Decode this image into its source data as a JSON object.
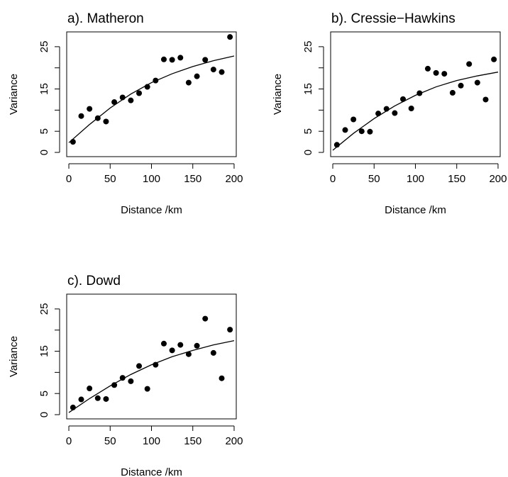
{
  "chart_data": [
    {
      "type": "scatter",
      "title": "a). Matheron",
      "xlabel": "Distance /km",
      "ylabel": "Variance",
      "x": [
        5,
        15,
        25,
        35,
        45,
        55,
        65,
        75,
        85,
        95,
        105,
        115,
        125,
        135,
        145,
        155,
        165,
        175,
        185,
        195
      ],
      "values": [
        2.5,
        8.6,
        10.3,
        8.1,
        7.3,
        11.9,
        13,
        12.3,
        14,
        15.5,
        17,
        22,
        21.9,
        22.4,
        16.5,
        18,
        21.9,
        19.6,
        19,
        27.3
      ],
      "fit": {
        "x": [
          0,
          25,
          50,
          75,
          100,
          125,
          150,
          175,
          200
        ],
        "values": [
          2.3,
          6.6,
          10.5,
          13.8,
          16.5,
          18.6,
          20.3,
          21.7,
          22.8
        ]
      },
      "xlim": [
        -2.6,
        202.6
      ],
      "ylim": [
        -1,
        28.5
      ],
      "xticks": [
        0,
        50,
        100,
        150,
        200
      ],
      "yticks": [
        0,
        5,
        15,
        25
      ],
      "yminor_ticks": [
        10,
        20
      ],
      "color": "#000000"
    },
    {
      "type": "scatter",
      "title": "b). Cressie−Hawkins",
      "xlabel": "Distance /km",
      "ylabel": "Variance",
      "x": [
        5,
        15,
        25,
        35,
        45,
        55,
        65,
        75,
        85,
        95,
        105,
        115,
        125,
        135,
        145,
        155,
        165,
        175,
        185,
        195
      ],
      "values": [
        1.8,
        5.3,
        7.8,
        5,
        4.9,
        9.2,
        10.3,
        9.3,
        12.6,
        10.4,
        14,
        19.8,
        18.8,
        18.6,
        14.1,
        15.8,
        20.9,
        16.5,
        12.5,
        22
      ],
      "fit": {
        "x": [
          0,
          25,
          50,
          75,
          100,
          125,
          150,
          175,
          200
        ],
        "values": [
          0.5,
          4.5,
          8,
          11,
          13.5,
          15.5,
          17,
          18.1,
          19
        ]
      },
      "xlim": [
        -2.6,
        202.6
      ],
      "ylim": [
        -1,
        28.5
      ],
      "xticks": [
        0,
        50,
        100,
        150,
        200
      ],
      "yticks": [
        0,
        5,
        15,
        25
      ],
      "yminor_ticks": [
        10,
        20
      ],
      "color": "#000000"
    },
    {
      "type": "scatter",
      "title": "c). Dowd",
      "xlabel": "Distance /km",
      "ylabel": "Variance",
      "x": [
        5,
        15,
        25,
        35,
        45,
        55,
        65,
        75,
        85,
        95,
        105,
        115,
        125,
        135,
        145,
        155,
        165,
        175,
        185,
        195
      ],
      "values": [
        1.7,
        3.6,
        6.2,
        3.9,
        3.7,
        7,
        8.7,
        7.9,
        11.5,
        6.1,
        11.8,
        16.8,
        15.2,
        16.5,
        14.3,
        16.3,
        22.7,
        14.6,
        8.6,
        20.1
      ],
      "fit": {
        "x": [
          0,
          25,
          50,
          75,
          100,
          125,
          150,
          175,
          200
        ],
        "values": [
          0.5,
          3.8,
          6.8,
          9.5,
          11.8,
          13.7,
          15.2,
          16.5,
          17.5
        ]
      },
      "xlim": [
        -2.6,
        202.6
      ],
      "ylim": [
        -1,
        28.5
      ],
      "xticks": [
        0,
        50,
        100,
        150,
        200
      ],
      "yticks": [
        0,
        5,
        15,
        25
      ],
      "yminor_ticks": [
        10,
        20
      ],
      "color": "#000000"
    }
  ]
}
